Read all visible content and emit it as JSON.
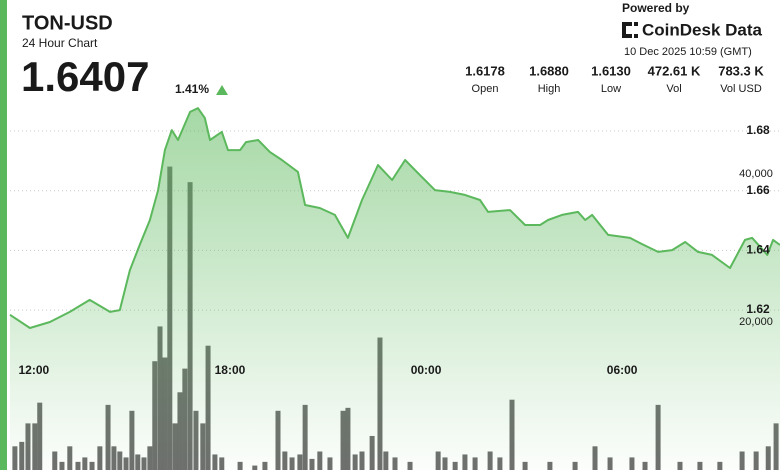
{
  "header": {
    "symbol": "TON-USD",
    "subtitle": "24 Hour Chart",
    "price": "1.6407",
    "change": "1.41%",
    "powered_by": "Powered by",
    "brand": "CoinDesk Data",
    "timestamp": "10 Dec 2025 10:59 (GMT)",
    "stats": [
      {
        "value": "1.6178",
        "label": "Open"
      },
      {
        "value": "1.6880",
        "label": "High"
      },
      {
        "value": "1.6130",
        "label": "Low"
      },
      {
        "value": "472.61 K",
        "label": "Vol"
      },
      {
        "value": "783.3 K",
        "label": "Vol USD"
      }
    ]
  },
  "chart_data": {
    "type": "line",
    "grid": true,
    "xlim": [
      11.27,
      34.83
    ],
    "xticks": [
      {
        "value": 12,
        "label": "12:00"
      },
      {
        "value": 18,
        "label": "18:00"
      },
      {
        "value": 24,
        "label": "00:00"
      },
      {
        "value": 30,
        "label": "06:00"
      }
    ],
    "ylim": [
      1.5664,
      1.6904
    ],
    "yticks": [
      1.62,
      1.64,
      1.66,
      1.68
    ],
    "y2lim": [
      0,
      50000
    ],
    "y2ticks": [
      {
        "value": 20000,
        "label": "20,000"
      },
      {
        "value": 40000,
        "label": "40,000"
      }
    ],
    "series": [
      {
        "type": "line",
        "color": "#5cb85c",
        "x": [
          11.27,
          11.88,
          12.49,
          13.1,
          13.71,
          14.33,
          14.63,
          14.94,
          15.24,
          15.55,
          15.8,
          16.01,
          16.22,
          16.41,
          16.78,
          17.02,
          17.23,
          17.39,
          17.75,
          17.94,
          18.31,
          18.49,
          18.86,
          19.22,
          19.59,
          20.08,
          20.3,
          20.75,
          21.21,
          21.61,
          22.04,
          22.53,
          22.96,
          23.36,
          23.81,
          24.27,
          24.73,
          25.19,
          25.65,
          25.9,
          26.57,
          27.03,
          27.49,
          27.73,
          28.16,
          28.65,
          28.87,
          29.08,
          29.57,
          30.24,
          30.61,
          31.1,
          31.53,
          31.93,
          32.32,
          32.75,
          33.3,
          33.76,
          33.98,
          34.44,
          34.62,
          34.83
        ],
        "values": [
          1.6184,
          1.614,
          1.616,
          1.6194,
          1.6234,
          1.6194,
          1.62,
          1.6334,
          1.6418,
          1.6502,
          1.6602,
          1.6736,
          1.6803,
          1.677,
          1.6864,
          1.6877,
          1.6844,
          1.677,
          1.6797,
          1.6736,
          1.6736,
          1.6763,
          1.677,
          1.673,
          1.6703,
          1.6663,
          1.6552,
          1.6542,
          1.6519,
          1.6442,
          1.6569,
          1.6686,
          1.6636,
          1.6703,
          1.6653,
          1.6602,
          1.6596,
          1.6586,
          1.6569,
          1.6529,
          1.6535,
          1.6485,
          1.6485,
          1.6502,
          1.6519,
          1.6529,
          1.6502,
          1.6519,
          1.6452,
          1.6442,
          1.6421,
          1.6395,
          1.6401,
          1.6428,
          1.6395,
          1.6385,
          1.6341,
          1.6435,
          1.6442,
          1.6385,
          1.6435,
          1.6418
        ]
      },
      {
        "type": "bar",
        "axis": "y2",
        "color": "#555555",
        "x": [
          11.42,
          11.63,
          11.82,
          12.03,
          12.18,
          12.64,
          12.86,
          13.1,
          13.35,
          13.56,
          13.78,
          14.02,
          14.27,
          14.45,
          14.63,
          14.82,
          15.0,
          15.18,
          15.37,
          15.55,
          15.7,
          15.86,
          16.01,
          16.16,
          16.32,
          16.47,
          16.62,
          16.78,
          16.96,
          17.17,
          17.33,
          17.54,
          17.75,
          18.31,
          18.76,
          19.07,
          19.47,
          19.68,
          19.9,
          20.14,
          20.3,
          20.51,
          20.75,
          21.06,
          21.46,
          21.61,
          21.83,
          22.04,
          22.35,
          22.59,
          22.77,
          23.05,
          23.51,
          24.37,
          24.58,
          24.89,
          25.19,
          25.5,
          25.96,
          26.26,
          26.63,
          27.03,
          27.79,
          28.56,
          29.17,
          29.63,
          30.3,
          30.7,
          31.1,
          31.77,
          32.38,
          32.99,
          33.67,
          34.1,
          34.47,
          34.71
        ],
        "values": [
          3200,
          3800,
          6300,
          6300,
          9100,
          2500,
          1100,
          3200,
          1100,
          1700,
          1100,
          3200,
          8800,
          3200,
          2500,
          1700,
          8000,
          2100,
          1700,
          3200,
          14700,
          19400,
          15200,
          41000,
          6300,
          10500,
          13700,
          38900,
          8000,
          6300,
          16800,
          2100,
          1700,
          1100,
          600,
          1100,
          8000,
          2500,
          1700,
          2100,
          8800,
          1500,
          2500,
          1700,
          8000,
          8400,
          2100,
          2500,
          4600,
          17900,
          2500,
          1700,
          1100,
          2500,
          1700,
          1100,
          2100,
          1700,
          2500,
          1700,
          9500,
          1100,
          1100,
          1100,
          3200,
          1700,
          1700,
          1100,
          8800,
          1100,
          1100,
          1100,
          2500,
          2500,
          3200,
          6300
        ]
      }
    ]
  }
}
